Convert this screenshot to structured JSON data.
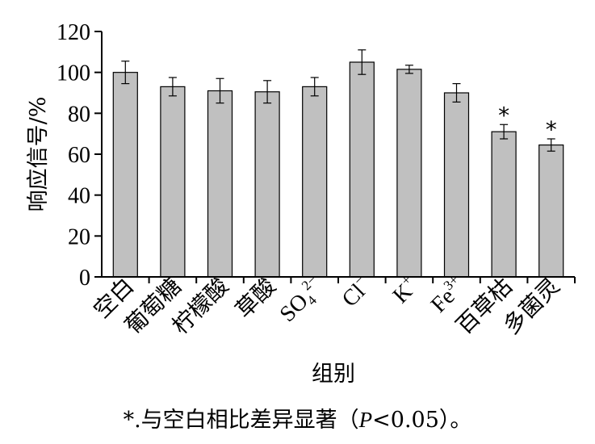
{
  "chart_data": {
    "type": "bar",
    "categories": [
      {
        "base": "空白"
      },
      {
        "base": "葡萄糖"
      },
      {
        "base": "柠檬酸"
      },
      {
        "base": "草酸"
      },
      {
        "base": "SO",
        "sub": "4",
        "sup": "2−"
      },
      {
        "base": "Cl",
        "sup": "−"
      },
      {
        "base": "K",
        "sup": "+"
      },
      {
        "base": "Fe",
        "sup": "3+"
      },
      {
        "base": "百草枯"
      },
      {
        "base": "多菌灵"
      }
    ],
    "values": [
      100,
      93,
      91,
      90.5,
      93,
      105,
      101.5,
      90,
      71,
      64.5
    ],
    "errors": [
      5.5,
      4.5,
      6,
      5.5,
      4.5,
      6,
      2,
      4.5,
      3.5,
      3
    ],
    "significant": [
      false,
      false,
      false,
      false,
      false,
      false,
      false,
      false,
      true,
      true
    ],
    "significance_marker": "*",
    "ylim": [
      0,
      120
    ],
    "yticks": [
      0,
      20,
      40,
      60,
      80,
      100,
      120
    ],
    "ylabel": "响应信号/%",
    "xlabel": "组别",
    "bar_color": "#c0c0c0",
    "grid": false
  },
  "footnote": {
    "prefix": "*.与空白相比差异显著（",
    "p": "P",
    "suffix": "<0.05）。"
  }
}
